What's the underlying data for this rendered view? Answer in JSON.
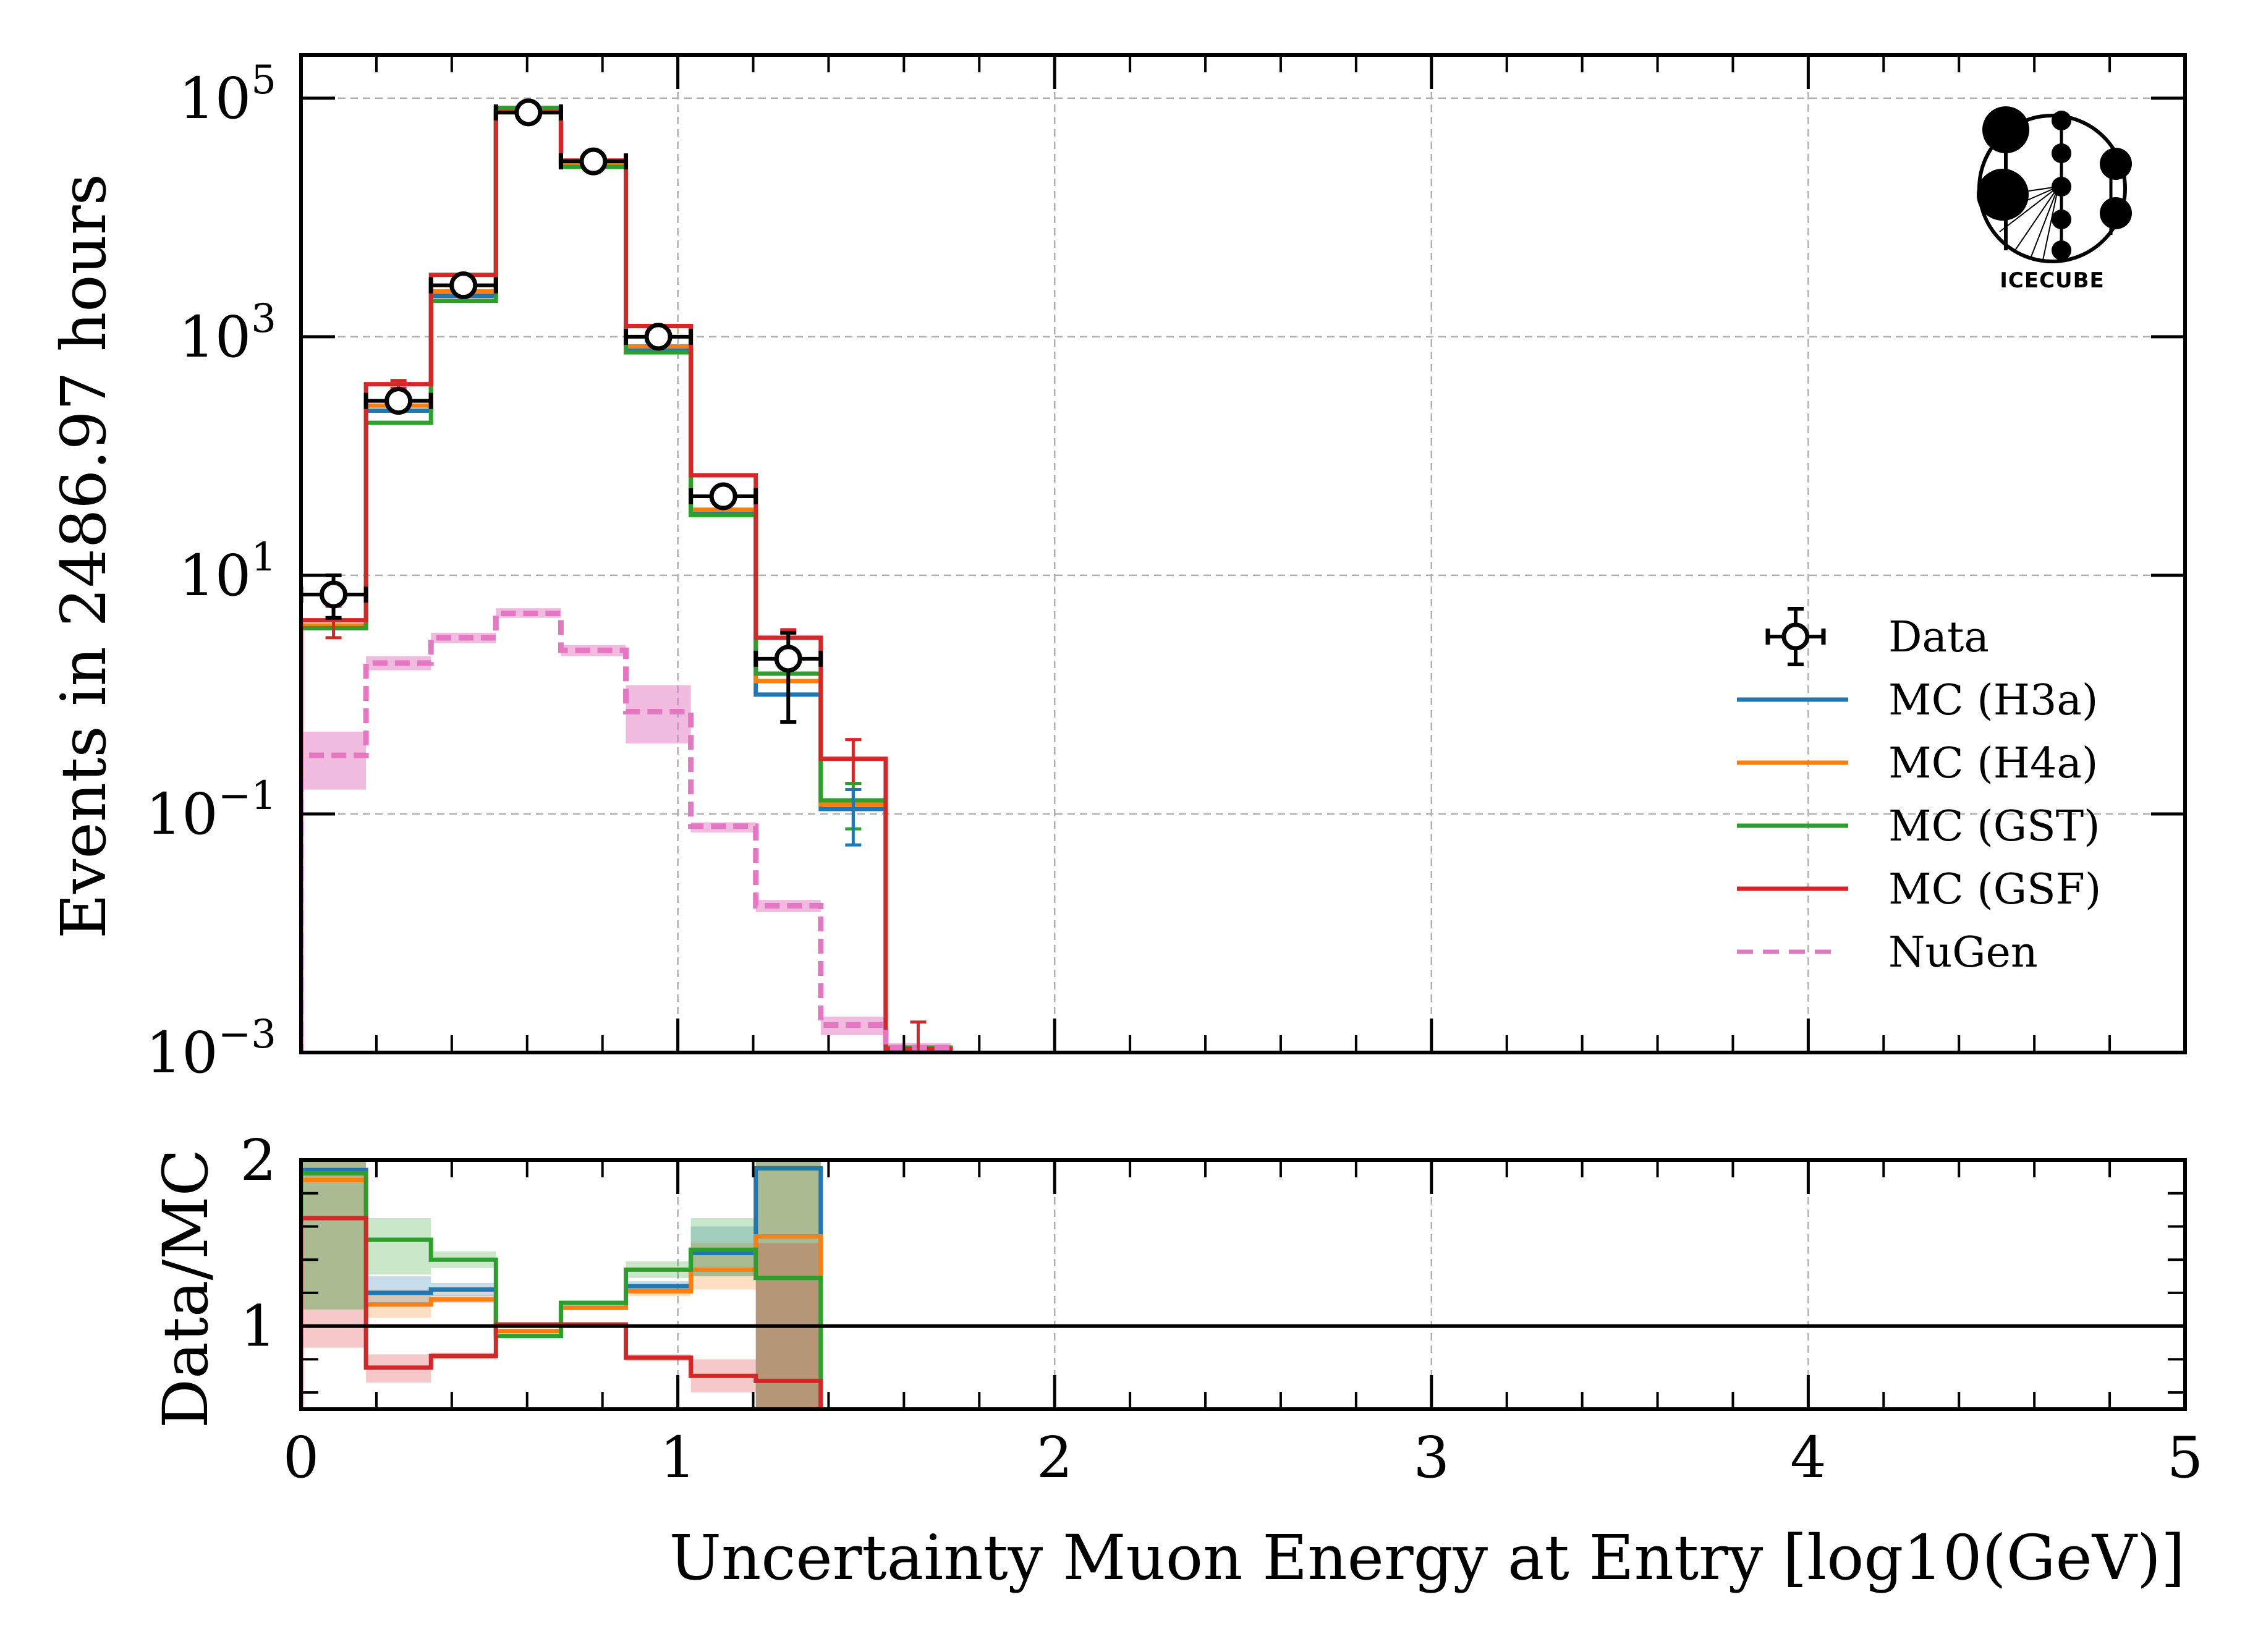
{
  "chart_data": [
    {
      "panel": "main",
      "type": "step-histogram",
      "title": "",
      "xlabel": "Uncertainty Muon Energy at Entry [log10(GeV)]",
      "ylabel": "Events in 2486.97 hours",
      "xlim": [
        0,
        5
      ],
      "ylim": [
        0.001,
        230000
      ],
      "yscale": "log",
      "grid": true,
      "legend_position": "center-right",
      "x_ticks": [
        "0",
        "1",
        "2",
        "3",
        "4",
        "5"
      ],
      "y_ticks": [
        {
          "value": 100000,
          "base": "10",
          "exp": "5"
        },
        {
          "value": 1000,
          "base": "10",
          "exp": "3"
        },
        {
          "value": 10,
          "base": "10",
          "exp": "1"
        },
        {
          "value": 0.1,
          "base": "10",
          "exp": "−1"
        },
        {
          "value": 0.001,
          "base": "10",
          "exp": "−3"
        }
      ],
      "bin_edges": [
        0,
        0.1724,
        0.3448,
        0.5172,
        0.6897,
        0.8621,
        1.0345,
        1.2069,
        1.3793,
        1.5517,
        1.7241
      ],
      "series": [
        {
          "name": "MC (H3a)",
          "color": "#1f77b4",
          "style": "solid",
          "values": [
            3.7,
            240,
            2200,
            78000,
            27500,
            780,
            33,
            1.0,
            0.11,
            0.0011
          ]
        },
        {
          "name": "MC (H4a)",
          "color": "#ff7f0e",
          "style": "solid",
          "values": [
            3.8,
            265,
            2400,
            78000,
            28000,
            830,
            35.5,
            1.3,
            0.12,
            0.0011
          ]
        },
        {
          "name": "MC (GST)",
          "color": "#2ca02c",
          "style": "solid",
          "values": [
            3.6,
            190,
            2000,
            83000,
            26500,
            740,
            32,
            1.5,
            0.13,
            0.0011
          ]
        },
        {
          "name": "MC (GSF)",
          "color": "#d62728",
          "style": "solid",
          "values": [
            4.2,
            400,
            3300,
            76000,
            30000,
            1230,
            69,
            3.0,
            0.29,
            0.00107
          ]
        },
        {
          "name": "NuGen",
          "color": "#e377c2",
          "style": "dashed",
          "values": [
            0.31,
            1.84,
            3.0,
            4.8,
            2.35,
            0.72,
            0.079,
            0.017,
            0.0017,
            0.0011
          ],
          "band_low": [
            0.16,
            1.6,
            2.7,
            4.4,
            2.1,
            0.39,
            0.07,
            0.015,
            0.0014,
            0.001
          ],
          "band_high": [
            0.49,
            2.1,
            3.3,
            5.3,
            2.6,
            1.2,
            0.085,
            0.019,
            0.002,
            0.0012
          ]
        }
      ],
      "data": {
        "name": "Data",
        "color": "#000000",
        "bins": [
          0,
          1,
          2,
          3,
          4,
          5,
          6,
          7
        ],
        "values": [
          6.9,
          290,
          2700,
          76000,
          29500,
          1000,
          46,
          2.0
        ],
        "err_low": [
          4.4,
          270,
          2620,
          75500,
          29300,
          970,
          40,
          0.59
        ],
        "err_high": [
          10,
          310,
          2780,
          76500,
          29700,
          1030,
          53,
          3.3
        ]
      },
      "mc_errors": {
        "MC (GSF)": {
          "bins": [
            0,
            1,
            7,
            8,
            9
          ],
          "low": [
            3.0,
            370,
            2.2,
            0.18,
            0.0
          ],
          "high": [
            5.5,
            430,
            3.5,
            0.42,
            0.0018
          ]
        },
        "MC (GST)": {
          "bins": [
            8
          ],
          "low": [
            0.075
          ],
          "high": [
            0.18
          ]
        },
        "MC (H3a)": {
          "bins": [
            8
          ],
          "low": [
            0.055
          ],
          "high": [
            0.16
          ]
        }
      }
    },
    {
      "panel": "ratio",
      "type": "step-histogram",
      "xlabel": "Uncertainty Muon Energy at Entry [log10(GeV)]",
      "ylabel": "Data/MC",
      "xlim": [
        0,
        5
      ],
      "ylim": [
        0.5,
        2
      ],
      "grid": "x-only",
      "reference_line": 1,
      "x_ticks": [
        "0",
        "1",
        "2",
        "3",
        "4",
        "5"
      ],
      "y_ticks": [
        "1",
        "2"
      ],
      "bin_edges": [
        0,
        0.1724,
        0.3448,
        0.5172,
        0.6897,
        0.8621,
        1.0345,
        1.2069,
        1.3793
      ],
      "series": [
        {
          "name": "MC (H3a)",
          "color": "#1f77b4",
          "values": [
            1.94,
            1.2,
            1.22,
            0.97,
            1.11,
            1.24,
            1.44,
            1.95
          ],
          "band_low": [
            1.1,
            1.12,
            1.18,
            0.96,
            1.1,
            1.22,
            1.3,
            0.5
          ],
          "band_high": [
            2.0,
            1.3,
            1.26,
            0.98,
            1.13,
            1.27,
            1.6,
            2.0
          ]
        },
        {
          "name": "MC (H4a)",
          "color": "#ff7f0e",
          "values": [
            1.88,
            1.13,
            1.16,
            0.97,
            1.11,
            1.21,
            1.34,
            1.54
          ],
          "band_low": [
            1.1,
            1.05,
            1.14,
            0.96,
            1.1,
            1.18,
            1.22,
            0.5
          ],
          "band_high": [
            2.0,
            1.22,
            1.19,
            0.98,
            1.12,
            1.24,
            1.5,
            2.0
          ]
        },
        {
          "name": "MC (GST)",
          "color": "#2ca02c",
          "values": [
            1.92,
            1.52,
            1.4,
            0.94,
            1.14,
            1.34,
            1.46,
            1.29
          ],
          "band_low": [
            1.1,
            1.31,
            1.35,
            0.93,
            1.13,
            1.29,
            1.3,
            0.5
          ],
          "band_high": [
            2.0,
            1.65,
            1.45,
            0.95,
            1.15,
            1.39,
            1.65,
            2.0
          ]
        },
        {
          "name": "MC (GSF)",
          "color": "#d62728",
          "values": [
            1.65,
            0.75,
            0.82,
            1.01,
            1.01,
            0.81,
            0.7,
            0.67
          ],
          "band_low": [
            0.87,
            0.66,
            0.8,
            1.0,
            1.0,
            0.79,
            0.6,
            0.5
          ],
          "band_high": [
            1.1,
            0.83,
            0.84,
            1.02,
            1.02,
            0.83,
            0.8,
            1.5
          ]
        }
      ]
    }
  ],
  "legend": {
    "items": [
      {
        "label": "Data",
        "kind": "data-marker",
        "color": "#000000"
      },
      {
        "label": "MC (H3a)",
        "kind": "line",
        "color": "#1f77b4"
      },
      {
        "label": "MC (H4a)",
        "kind": "line",
        "color": "#ff7f0e"
      },
      {
        "label": "MC (GST)",
        "kind": "line",
        "color": "#2ca02c"
      },
      {
        "label": "MC (GSF)",
        "kind": "line",
        "color": "#d62728"
      },
      {
        "label": "NuGen",
        "kind": "dashed",
        "color": "#e377c2"
      }
    ]
  },
  "logo": {
    "text": "IceCube",
    "display_text": "ICECUBE"
  }
}
